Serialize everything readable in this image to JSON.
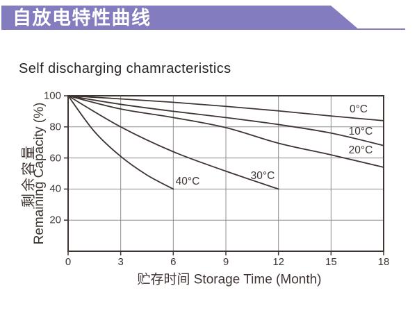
{
  "header": {
    "title_zh": "自放电特性曲线",
    "banner_color": "#837CBE",
    "banner_text_color": "#FFFFFF"
  },
  "chart_data": {
    "type": "line",
    "title": "Self discharging chamracteristics",
    "xlabel": "贮存时间 Storage Time (Month)",
    "ylabel_zh": "剩余容量",
    "ylabel_en": "Remaining Capacity (%)",
    "xlim": [
      0,
      18
    ],
    "ylim": [
      0,
      100
    ],
    "x_ticks": [
      0,
      3,
      6,
      9,
      12,
      15,
      18
    ],
    "y_ticks": [
      100,
      80,
      60,
      40,
      20
    ],
    "grid": true,
    "legend_position": "inline-right-of-curves",
    "line_color": "#3E3431",
    "grid_color": "#8C8C8C",
    "series": [
      {
        "name": "0°C",
        "points": [
          [
            0,
            100
          ],
          [
            3,
            98
          ],
          [
            6,
            95.8
          ],
          [
            9,
            93.2
          ],
          [
            12,
            90.3
          ],
          [
            15,
            87
          ],
          [
            18,
            84
          ]
        ]
      },
      {
        "name": "10°C",
        "points": [
          [
            0,
            100
          ],
          [
            3,
            94.5
          ],
          [
            6,
            90
          ],
          [
            9,
            86
          ],
          [
            12,
            81.5
          ],
          [
            15,
            76
          ],
          [
            18,
            68
          ]
        ]
      },
      {
        "name": "20°C",
        "points": [
          [
            0,
            100
          ],
          [
            3,
            91.5
          ],
          [
            6,
            86
          ],
          [
            9,
            79.5
          ],
          [
            12,
            69.5
          ],
          [
            15,
            62
          ],
          [
            18,
            54
          ]
        ]
      },
      {
        "name": "30°C",
        "points": [
          [
            0,
            100
          ],
          [
            3,
            80
          ],
          [
            6,
            64
          ],
          [
            9,
            51.5
          ],
          [
            12,
            40
          ]
        ]
      },
      {
        "name": "40°C",
        "points": [
          [
            0,
            100
          ],
          [
            1.5,
            77
          ],
          [
            3,
            61
          ],
          [
            4.5,
            49
          ],
          [
            6,
            40
          ]
        ]
      }
    ]
  }
}
